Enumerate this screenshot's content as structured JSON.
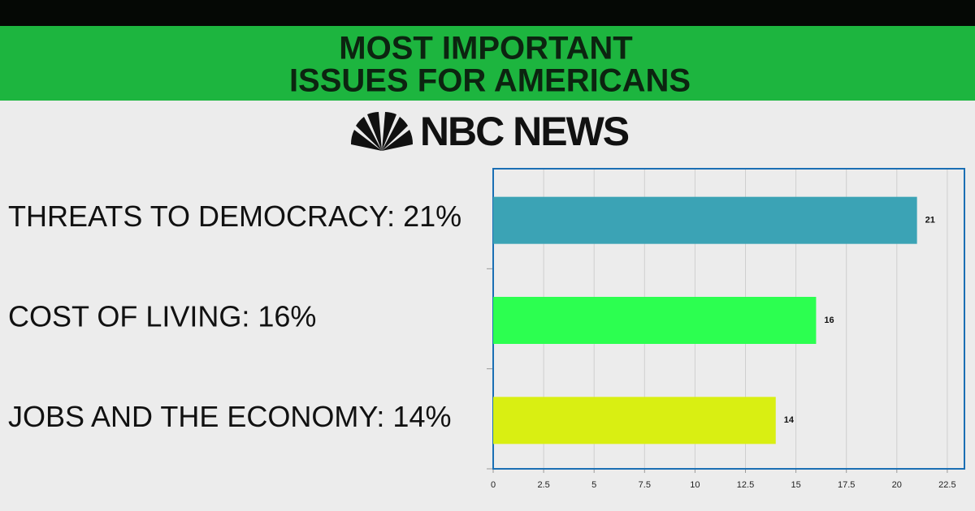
{
  "chart_data": {
    "type": "bar",
    "orientation": "horizontal",
    "title": [
      "MOST IMPORTANT",
      "ISSUES FOR AMERICANS"
    ],
    "logo": "NBC NEWS",
    "categories": [
      "THREATS TO DEMOCRACY: 21%",
      "COST OF LIVING: 16%",
      "JOBS AND THE ECONOMY: 14%"
    ],
    "values": [
      21,
      16,
      14
    ],
    "colors": [
      "#3ba3b5",
      "#2cff50",
      "#d9ef12"
    ],
    "xlim": [
      0,
      23.35
    ],
    "xticks": [
      0,
      2.5,
      5,
      7.5,
      10,
      12.5,
      15,
      17.5,
      20,
      22.5
    ],
    "grid": true
  }
}
